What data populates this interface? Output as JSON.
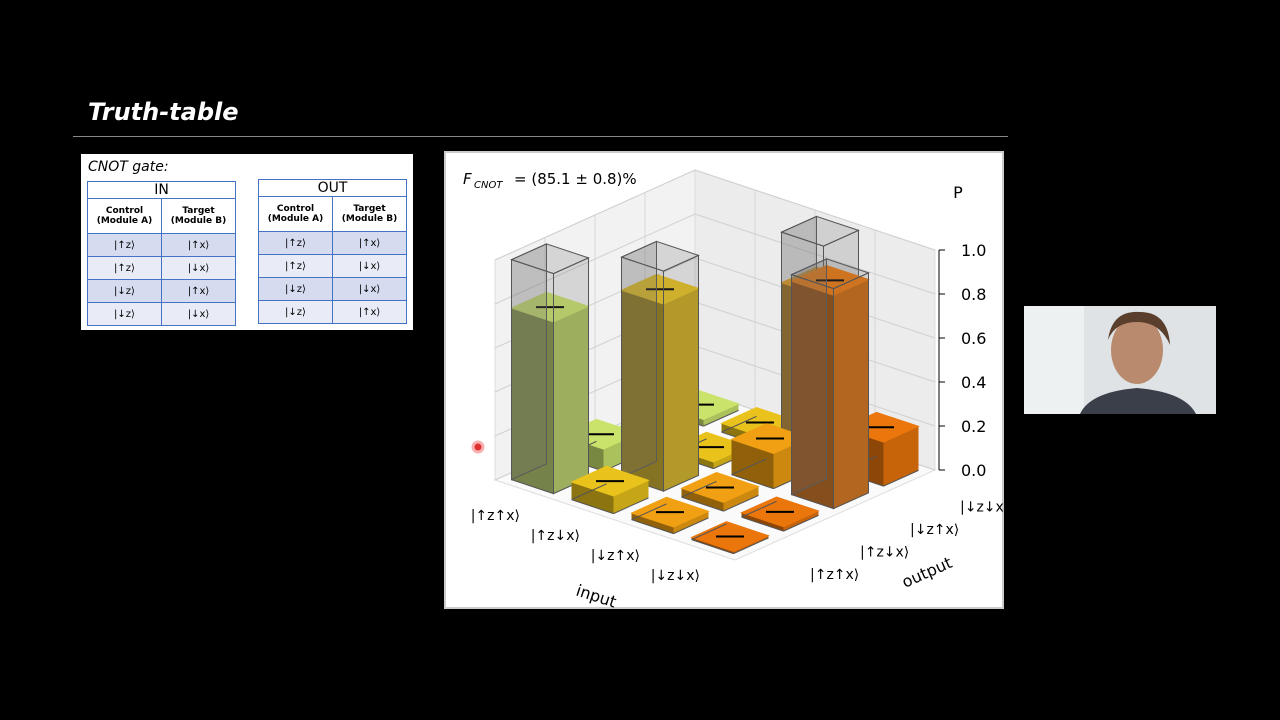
{
  "slide": {
    "title": "Truth-table"
  },
  "cnot_table": {
    "title": "CNOT gate:",
    "in": {
      "label": "IN",
      "headers": [
        "Control (Module A)",
        "Target (Module B)"
      ],
      "rows": [
        [
          "|↑z⟩",
          "|↑x⟩"
        ],
        [
          "|↑z⟩",
          "|↓x⟩"
        ],
        [
          "|↓z⟩",
          "|↑x⟩"
        ],
        [
          "|↓z⟩",
          "|↓x⟩"
        ]
      ]
    },
    "out": {
      "label": "OUT",
      "headers": [
        "Control (Module A)",
        "Target (Module B)"
      ],
      "rows": [
        [
          "|↑z⟩",
          "|↑x⟩"
        ],
        [
          "|↑z⟩",
          "|↓x⟩"
        ],
        [
          "|↓z⟩",
          "|↓x⟩"
        ],
        [
          "|↓z⟩",
          "|↑x⟩"
        ]
      ]
    }
  },
  "chart_data": {
    "type": "bar3d",
    "fidelity": {
      "symbol": "F",
      "subscript": "CNOT",
      "text": "= (85.1 ± 0.8)%"
    },
    "zlabel": "P",
    "xlabel": "input",
    "ylabel": "output",
    "x_categories": [
      "|↑z↑x⟩",
      "|↑z↓x⟩",
      "|↓z↑x⟩",
      "|↓z↓x⟩"
    ],
    "y_categories": [
      "|↑z↑x⟩",
      "|↑z↓x⟩",
      "|↓z↑x⟩",
      "|↓z↓x⟩"
    ],
    "colors": [
      "#c9e36b",
      "#e9c31c",
      "#f0a012",
      "#ea760c"
    ],
    "values": [
      [
        0.78,
        0.1,
        0.02,
        0.03
      ],
      [
        0.08,
        0.85,
        0.03,
        0.04
      ],
      [
        0.03,
        0.04,
        0.16,
        0.77
      ],
      [
        0.01,
        0.02,
        0.97,
        0.2
      ]
    ],
    "ideal": [
      [
        1,
        0,
        0,
        0
      ],
      [
        0,
        1,
        0,
        0
      ],
      [
        0,
        0,
        0,
        1
      ],
      [
        0,
        0,
        1,
        0
      ]
    ],
    "zlim": [
      0,
      1
    ],
    "zticks": [
      {
        "value": 0,
        "label": "0.0"
      },
      {
        "value": 0.2,
        "label": "0.2"
      },
      {
        "value": 0.4,
        "label": "0.4"
      },
      {
        "value": 0.6,
        "label": "0.6"
      },
      {
        "value": 0.8,
        "label": "0.8"
      },
      {
        "value": 1,
        "label": "1.0"
      }
    ]
  }
}
